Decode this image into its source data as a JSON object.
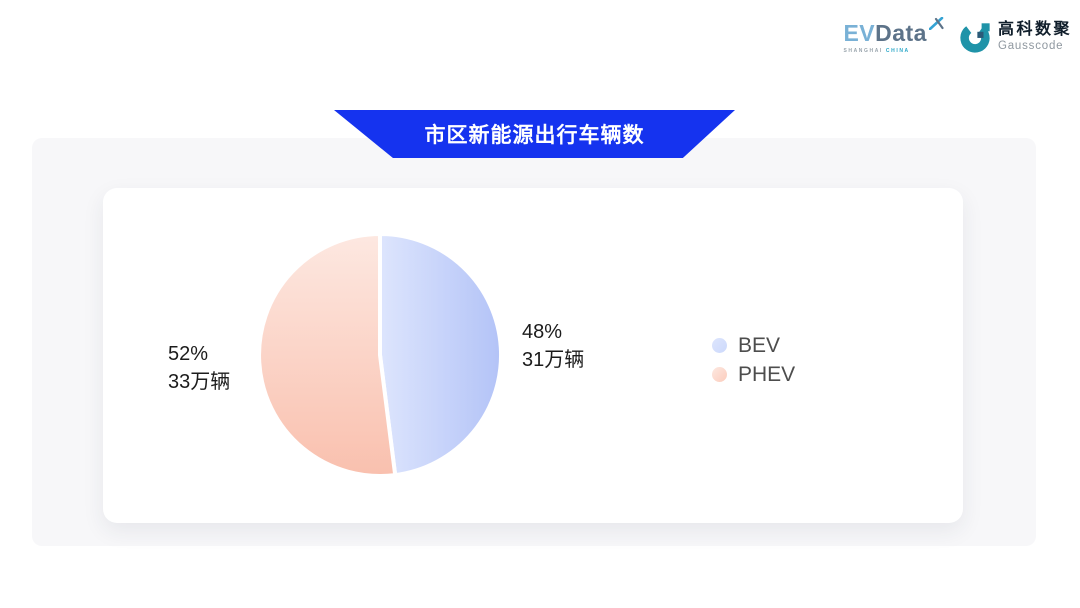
{
  "brand": {
    "evdata": {
      "part1": "EV",
      "part2": "Data",
      "sub1": "SHANGHAI ",
      "sub2": "CHINA"
    },
    "gausscode": {
      "cn": "高科数聚",
      "en": "Gausscode"
    }
  },
  "banner": {
    "title": "市区新能源出行车辆数"
  },
  "chart_data": {
    "type": "pie",
    "title": "市区新能源出行车辆数",
    "unit": "万辆",
    "total_label_note": "labels show percent and vehicle count",
    "series": [
      {
        "name": "BEV",
        "value": 31,
        "percent": 48,
        "percent_label": "48%",
        "value_label": "31万辆",
        "color_start": "#dde5fd",
        "color_end": "#b3c3f7",
        "marker": "#ccd9fb"
      },
      {
        "name": "PHEV",
        "value": 33,
        "percent": 52,
        "percent_label": "52%",
        "value_label": "33万辆",
        "color_start": "#fde8e1",
        "color_end": "#f9c0ae",
        "marker": "#fbccbc"
      }
    ],
    "legend": [
      "BEV",
      "PHEV"
    ],
    "legend_position": "right",
    "start_angle_deg": 0,
    "direction": "clockwise",
    "slice_gap_stroke": "#ffffff"
  },
  "colors": {
    "banner": "#1533ef",
    "panel": "#f7f7f9",
    "card": "#ffffff",
    "label_text": "#1c1c1c",
    "legend_text": "#4d4d4d",
    "teal": "#2aa7c8"
  }
}
